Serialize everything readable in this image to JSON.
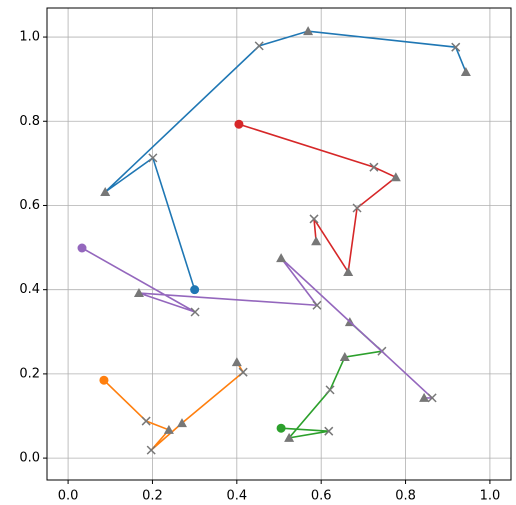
{
  "chart_data": {
    "type": "line",
    "xlim": [
      -0.05,
      1.05
    ],
    "ylim": [
      -0.052,
      1.069
    ],
    "xticks": [
      {
        "value": 0,
        "label": "0.0"
      },
      0.2,
      0.4,
      0.6,
      0.8,
      {
        "value": 1,
        "label": "1.0"
      }
    ],
    "yticks": [
      {
        "value": 0,
        "label": "0.0"
      },
      0.2,
      0.4,
      0.6,
      0.8,
      {
        "value": 1,
        "label": "1.0"
      }
    ],
    "grid": true,
    "marker_color": "#777777",
    "series": [
      {
        "color": "#1f77b4",
        "x": [
          0.3,
          0.201,
          0.088,
          0.453,
          0.569,
          0.919,
          0.943
        ],
        "values": [
          0.4,
          0.713,
          0.632,
          0.979,
          1.014,
          0.976,
          0.917
        ]
      },
      {
        "color": "#ff7f0e",
        "x": [
          0.085,
          0.185,
          0.239,
          0.197,
          0.27,
          0.415,
          0.4
        ],
        "values": [
          0.185,
          0.088,
          0.067,
          0.019,
          0.083,
          0.204,
          0.228
        ]
      },
      {
        "color": "#2ca02c",
        "x": [
          0.505,
          0.618,
          0.524,
          0.621,
          0.656,
          0.744,
          0.668
        ],
        "values": [
          0.071,
          0.064,
          0.048,
          0.162,
          0.24,
          0.254,
          0.323
        ]
      },
      {
        "color": "#d62728",
        "x": [
          0.405,
          0.725,
          0.777,
          0.685,
          0.664,
          0.583,
          0.588
        ],
        "values": [
          0.793,
          0.691,
          0.667,
          0.594,
          0.442,
          0.568,
          0.515
        ]
      },
      {
        "color": "#9467bd",
        "x": [
          0.033,
          0.301,
          0.168,
          0.59,
          0.505,
          0.863,
          0.844
        ],
        "values": [
          0.499,
          0.347,
          0.392,
          0.363,
          0.475,
          0.143,
          0.143
        ]
      }
    ]
  }
}
